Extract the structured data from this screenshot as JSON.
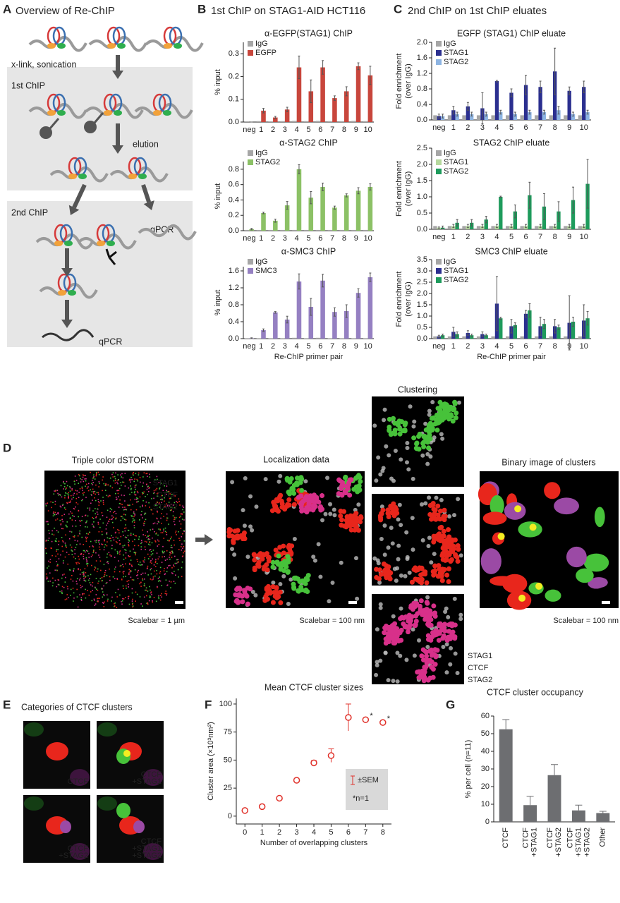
{
  "panel_labels": [
    "A",
    "B",
    "C",
    "D",
    "E",
    "F",
    "G"
  ],
  "panel_a": {
    "title": "Overview of Re-ChIP",
    "step_crosslink": "x-link, sonication",
    "step_first": "1st ChIP",
    "step_elution": "elution",
    "step_second": "2nd ChIP",
    "readout_direct": "qPCR",
    "readout_rechip": "qPCR"
  },
  "headers": {
    "panel_b": "1st ChIP on STAG1-AID HCT116",
    "panel_c": "2nd ChIP on 1st ChIP eluates"
  },
  "chart_data": [
    {
      "type": "bar",
      "title": "α-EGFP(STAG1) ChIP",
      "ylabel": "% input",
      "categories": [
        "neg",
        "1",
        "2",
        "3",
        "4",
        "5",
        "6",
        "7",
        "8",
        "9",
        "10"
      ],
      "series": [
        {
          "name": "IgG",
          "color": "#a6a6a6",
          "values": [
            0.003,
            0.004,
            0.003,
            0.004,
            0.005,
            0.004,
            0.005,
            0.004,
            0.004,
            0.005,
            0.004
          ]
        },
        {
          "name": "EGFP",
          "color": "#c8463c",
          "values": [
            0.0,
            0.05,
            0.02,
            0.055,
            0.24,
            0.135,
            0.24,
            0.105,
            0.135,
            0.245,
            0.205
          ],
          "errors": [
            0.0,
            0.01,
            0.005,
            0.01,
            0.05,
            0.05,
            0.03,
            0.01,
            0.02,
            0.015,
            0.04
          ]
        }
      ],
      "ylim": [
        0,
        0.35
      ],
      "yticks": [
        {
          "value": 0,
          "label": "0.0"
        },
        0.1,
        0.2,
        0.3
      ]
    },
    {
      "type": "bar",
      "title": "α-STAG2 ChIP",
      "ylabel": "% input",
      "categories": [
        "neg",
        "1",
        "2",
        "3",
        "4",
        "5",
        "6",
        "7",
        "8",
        "9",
        "10"
      ],
      "series": [
        {
          "name": "IgG",
          "color": "#a6a6a6",
          "values": [
            0.01,
            0.01,
            0.01,
            0.01,
            0.01,
            0.01,
            0.01,
            0.01,
            0.01,
            0.01,
            0.01
          ]
        },
        {
          "name": "STAG2",
          "color": "#8cc166",
          "values": [
            0.02,
            0.23,
            0.13,
            0.33,
            0.8,
            0.43,
            0.57,
            0.3,
            0.46,
            0.52,
            0.57
          ],
          "errors": [
            0.01,
            0.01,
            0.02,
            0.05,
            0.06,
            0.08,
            0.05,
            0.02,
            0.02,
            0.04,
            0.04
          ]
        }
      ],
      "ylim": [
        0,
        0.9
      ],
      "yticks": [
        {
          "value": 0,
          "label": "0.0"
        },
        0.2,
        0.4,
        0.6,
        0.8
      ]
    },
    {
      "type": "bar",
      "title": "α-SMC3 ChIP",
      "ylabel": "% input",
      "xlabel": "Re-ChIP primer pair",
      "categories": [
        "neg",
        "1",
        "2",
        "3",
        "4",
        "5",
        "6",
        "7",
        "8",
        "9",
        "10"
      ],
      "series": [
        {
          "name": "IgG",
          "color": "#a6a6a6",
          "values": [
            0.01,
            0.01,
            0.01,
            0.01,
            0.02,
            0.01,
            0.02,
            0.01,
            0.01,
            0.01,
            0.01
          ]
        },
        {
          "name": "SMC3",
          "color": "#9580c2",
          "values": [
            0.01,
            0.2,
            0.62,
            0.45,
            1.35,
            0.75,
            1.37,
            0.63,
            0.65,
            1.08,
            1.45
          ],
          "errors": [
            0.01,
            0.03,
            0.02,
            0.08,
            0.18,
            0.2,
            0.15,
            0.1,
            0.15,
            0.1,
            0.1
          ]
        }
      ],
      "ylim": [
        0,
        1.7
      ],
      "yticks": [
        {
          "value": 0,
          "label": "0.0"
        },
        0.4,
        0.8,
        1.2,
        1.6
      ]
    },
    {
      "type": "bar",
      "title": "EGFP (STAG1) ChIP eluate",
      "ylabel": [
        "Fold enrichment",
        "(over IgG)"
      ],
      "categories": [
        "neg",
        "1",
        "2",
        "3",
        "4",
        "5",
        "6",
        "7",
        "8",
        "9",
        "10"
      ],
      "series": [
        {
          "name": "IgG",
          "color": "#a6a6a6",
          "values": [
            0.12,
            0.12,
            0.12,
            0.12,
            0.12,
            0.12,
            0.12,
            0.12,
            0.12,
            0.12,
            0.12
          ]
        },
        {
          "name": "STAG1",
          "color": "#2b2f8f",
          "values": [
            0.1,
            0.25,
            0.35,
            0.3,
            1.0,
            0.7,
            0.9,
            0.85,
            1.25,
            0.75,
            0.85
          ],
          "errors": [
            0.05,
            0.1,
            0.1,
            0.4,
            0.02,
            0.1,
            0.25,
            0.15,
            0.6,
            0.1,
            0.15
          ]
        },
        {
          "name": "STAG2",
          "color": "#8db4e2",
          "values": [
            0.1,
            0.15,
            0.15,
            0.15,
            0.2,
            0.15,
            0.2,
            0.2,
            0.25,
            0.15,
            0.2
          ],
          "errors": [
            0.05,
            0.05,
            0.05,
            0.05,
            0.05,
            0.05,
            0.05,
            0.05,
            0.1,
            0.05,
            0.05
          ]
        }
      ],
      "ylim": [
        0,
        2.0
      ],
      "yticks": [
        {
          "value": 0,
          "label": "0.0"
        },
        0.4,
        0.8,
        1.2,
        1.6,
        {
          "value": 2,
          "label": "2.0"
        }
      ]
    },
    {
      "type": "bar",
      "title": "STAG2 ChIP eluate",
      "ylabel": [
        "Fold enrichment",
        "(over IgG)"
      ],
      "categories": [
        "neg",
        "1",
        "2",
        "3",
        "4",
        "5",
        "6",
        "7",
        "8",
        "9",
        "10"
      ],
      "series": [
        {
          "name": "IgG",
          "color": "#a6a6a6",
          "values": [
            0.1,
            0.1,
            0.1,
            0.1,
            0.1,
            0.1,
            0.1,
            0.1,
            0.1,
            0.1,
            0.1
          ]
        },
        {
          "name": "STAG1",
          "color": "#b6d99e",
          "values": [
            0.05,
            0.1,
            0.1,
            0.1,
            0.1,
            0.1,
            0.1,
            0.1,
            0.1,
            0.1,
            0.1
          ],
          "errors": [
            0.02,
            0.05,
            0.05,
            0.05,
            0.05,
            0.05,
            0.05,
            0.05,
            0.05,
            0.05,
            0.05
          ]
        },
        {
          "name": "STAG2",
          "color": "#1e9b5c",
          "values": [
            0.05,
            0.2,
            0.2,
            0.3,
            1.0,
            0.55,
            1.05,
            0.7,
            0.55,
            0.9,
            1.4
          ],
          "errors": [
            0.05,
            0.1,
            0.1,
            0.1,
            0.02,
            0.2,
            0.4,
            0.4,
            0.3,
            0.4,
            0.75
          ]
        }
      ],
      "ylim": [
        0,
        2.5
      ],
      "yticks": [
        {
          "value": 0,
          "label": "0.0"
        },
        0.5,
        {
          "value": 1,
          "label": "1.0"
        },
        1.5,
        {
          "value": 2,
          "label": "2.0"
        },
        2.5
      ]
    },
    {
      "type": "bar",
      "title": "SMC3 ChIP eluate",
      "ylabel": [
        "Fold enrichment",
        "(over IgG)"
      ],
      "xlabel": "Re-ChIP primer pair",
      "categories": [
        "neg",
        "1",
        "2",
        "3",
        "4",
        "5",
        "6",
        "7",
        "8",
        "9",
        "10"
      ],
      "series": [
        {
          "name": "IgG",
          "color": "#a6a6a6",
          "values": [
            0.1,
            0.1,
            0.1,
            0.1,
            0.1,
            0.1,
            0.1,
            0.1,
            0.1,
            0.1,
            0.1
          ]
        },
        {
          "name": "STAG1",
          "color": "#2b2f8f",
          "values": [
            0.1,
            0.3,
            0.25,
            0.2,
            1.55,
            0.55,
            1.1,
            0.55,
            0.55,
            0.7,
            0.8
          ],
          "errors": [
            0.05,
            0.2,
            0.1,
            0.1,
            1.2,
            0.3,
            0.15,
            0.4,
            0.3,
            1.2,
            0.7
          ]
        },
        {
          "name": "STAG2",
          "color": "#1e9b5c",
          "values": [
            0.15,
            0.2,
            0.15,
            0.15,
            0.9,
            0.6,
            1.25,
            0.65,
            0.5,
            0.75,
            0.9
          ],
          "errors": [
            0.05,
            0.1,
            0.05,
            0.05,
            0.05,
            0.1,
            0.3,
            0.2,
            0.1,
            0.2,
            0.3
          ]
        }
      ],
      "ylim": [
        0,
        3.5
      ],
      "yticks": [
        {
          "value": 0,
          "label": "0.0"
        },
        0.5,
        {
          "value": 1,
          "label": "1.0"
        },
        1.5,
        {
          "value": 2,
          "label": "2.0"
        },
        2.5,
        {
          "value": 3,
          "label": "3.0"
        },
        3.5
      ]
    },
    {
      "type": "scatter",
      "title": "Mean CTCF cluster sizes",
      "xlabel": "Number of overlapping clusters",
      "ylabel": "Cluster area (×10³nm²)",
      "color": "#e0312a",
      "x": [
        0,
        1,
        2,
        3,
        4,
        5,
        6,
        7,
        8
      ],
      "values": [
        5,
        8.5,
        16,
        32,
        47.5,
        54,
        88,
        86,
        83.5
      ],
      "errors": [
        1.5,
        1.5,
        1,
        1,
        2,
        6,
        12,
        null,
        null
      ],
      "xlim": [
        -0.5,
        8.5
      ],
      "ylim": [
        -7,
        105
      ],
      "xticks": [
        0,
        1,
        2,
        3,
        4,
        5,
        6,
        7,
        8
      ],
      "yticks": [
        0,
        25,
        50,
        75,
        100
      ],
      "legend": [
        "±SEM",
        "*n=1"
      ],
      "annotations": [
        {
          "text": "*",
          "x": 7
        },
        {
          "text": "*",
          "x": 8
        }
      ]
    },
    {
      "type": "bar",
      "title": "CTCF cluster occupancy",
      "ylabel": "% per cell (n=11)",
      "color": "#6d6e71",
      "categories": [
        [
          "CTCF"
        ],
        [
          "CTCF",
          "+STAG1"
        ],
        [
          "CTCF",
          "+STAG2"
        ],
        [
          "CTCF",
          "+STAG1",
          "+STAG2"
        ],
        [
          "Other"
        ]
      ],
      "label_colors": {
        "CTCF": "#e0312a",
        "+STAG1": "#35b34a",
        "+STAG2": "#9a4ea2",
        "Other": "#222222"
      },
      "values": [
        52.5,
        9.5,
        26.5,
        6.5,
        5
      ],
      "errors": [
        5.5,
        5,
        6,
        3,
        1
      ],
      "ylim": [
        0,
        60
      ],
      "yticks": [
        0,
        10,
        20,
        30,
        40,
        50,
        60
      ]
    }
  ],
  "panel_d": {
    "dstorm_title": "Triple color dSTORM",
    "dstorm_legend": [
      "STAG1",
      "CTCF",
      "STAG2"
    ],
    "dstorm_scalebar": "Scalebar = 1 µm",
    "localization_title": "Localization data",
    "localization_scalebar": "Scalebar = 100 nm",
    "clustering_title": "Clustering",
    "clustering_legend": [
      "STAG1",
      "CTCF",
      "STAG2"
    ],
    "binary_title": "Binary image of clusters",
    "binary_scalebar": "Scalebar = 100 nm"
  },
  "panel_e": {
    "title": "Categories of CTCF clusters",
    "tiles": [
      [
        "CTCF"
      ],
      [
        "CTCF",
        "+STAG1"
      ],
      [
        "CTCF",
        "+STAG2"
      ],
      [
        "CTCF",
        "+STAG1",
        "+STAG2"
      ]
    ]
  }
}
